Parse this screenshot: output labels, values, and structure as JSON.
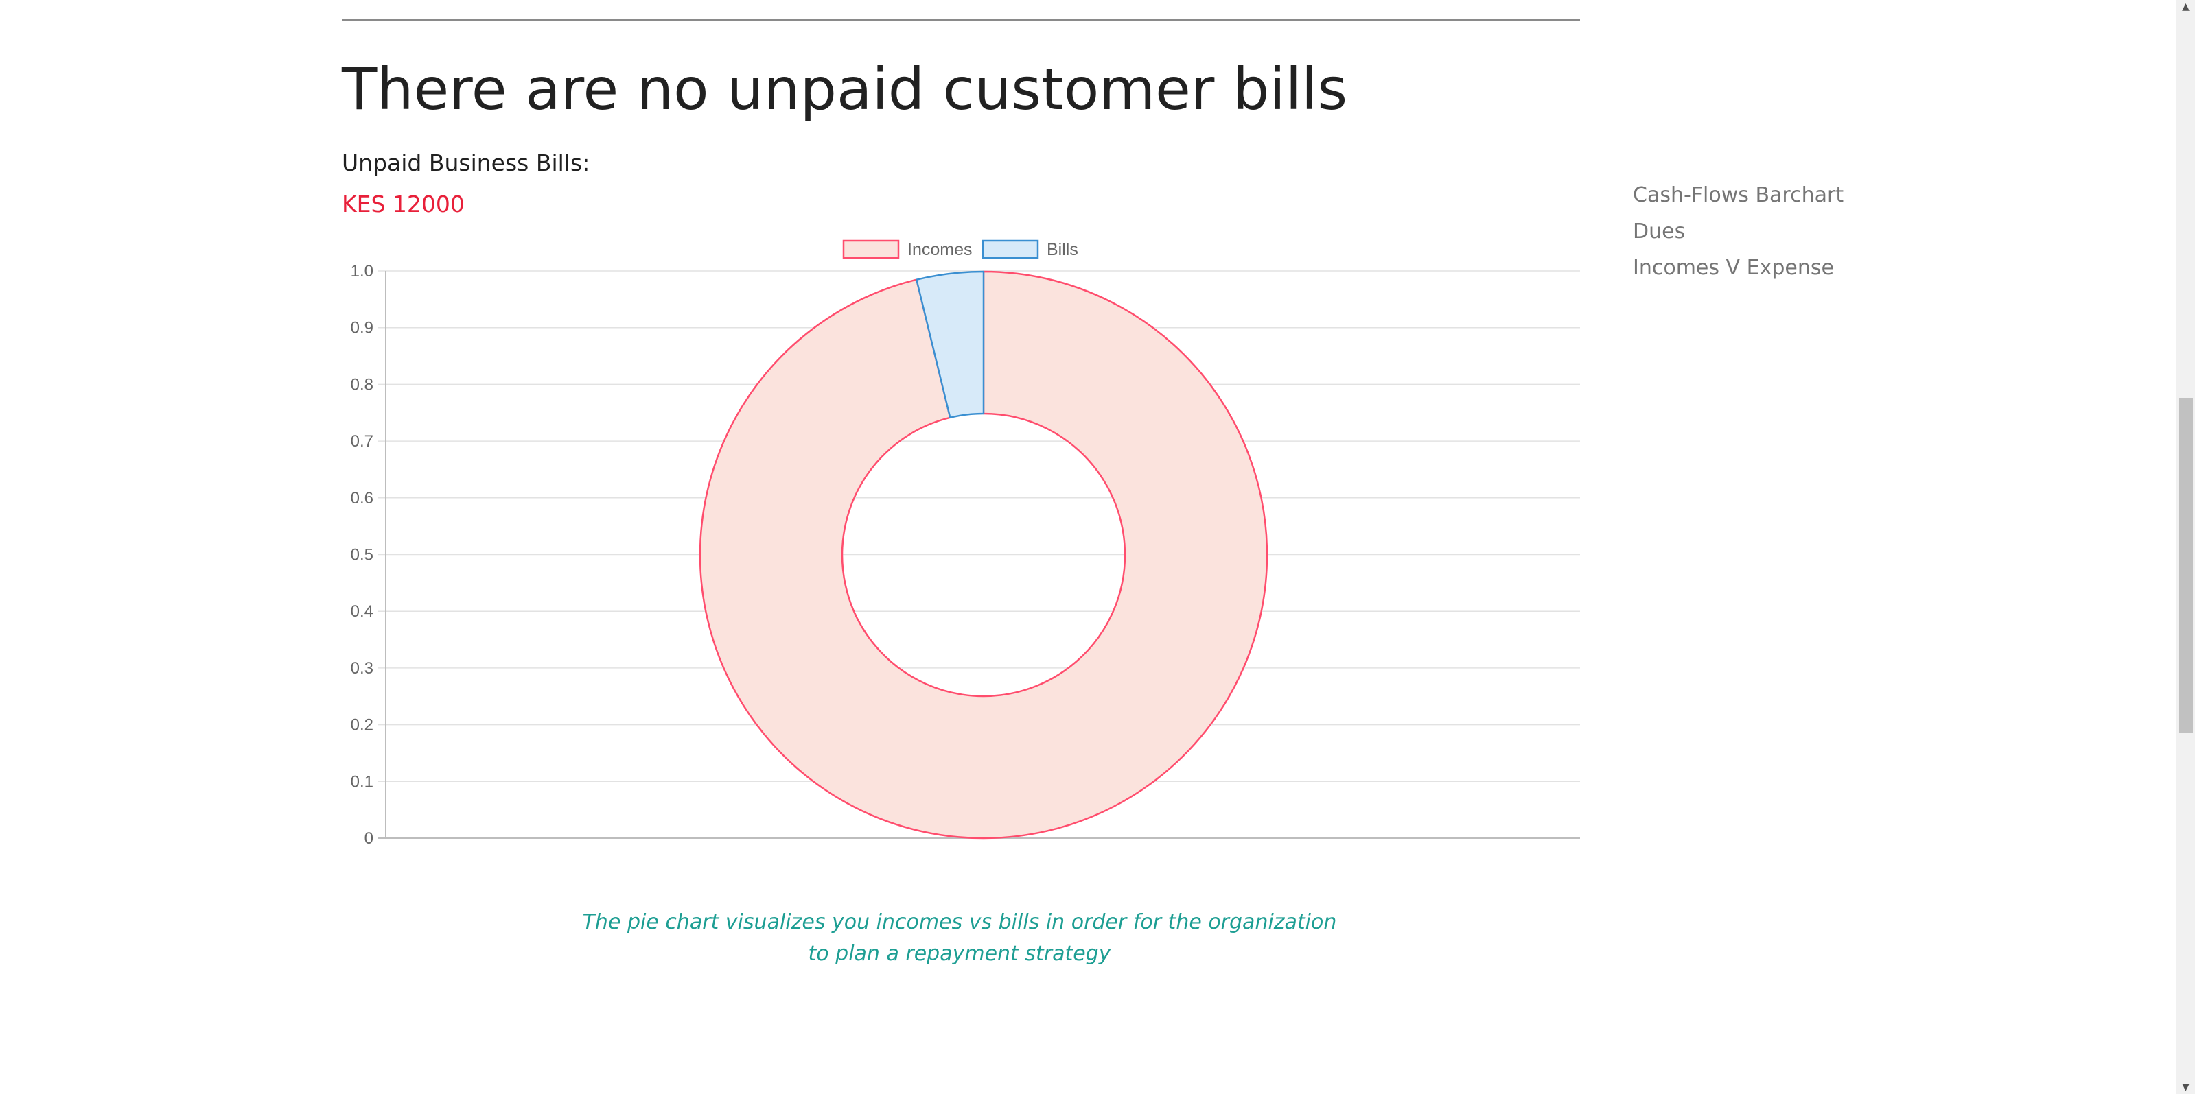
{
  "header": {
    "title": "There are no unpaid customer bills",
    "bills_label": "Unpaid Business Bills:",
    "bills_amount": "KES 12000"
  },
  "sidebar": {
    "items": [
      {
        "label": "Cash-Flows Barchart"
      },
      {
        "label": "Dues"
      },
      {
        "label": "Incomes V Expense"
      }
    ]
  },
  "caption": {
    "line1": "The pie chart visualizes you incomes vs bills in order for the organization",
    "line2": "to plan a repayment strategy"
  },
  "colors": {
    "incomes_fill": "#fbe3dd",
    "incomes_border": "#ff4d6d",
    "bills_fill": "#d7eaf9",
    "bills_border": "#3a8fd1",
    "accent_red": "#e8203a",
    "caption_teal": "#1d9e93"
  },
  "chart_data": {
    "type": "pie",
    "title": "",
    "legend_position": "top",
    "grid": true,
    "ylim": [
      0,
      1
    ],
    "y_ticks": [
      "1.0",
      "0.9",
      "0.8",
      "0.7",
      "0.6",
      "0.5",
      "0.4",
      "0.3",
      "0.2",
      "0.1",
      "0"
    ],
    "doughnut": true,
    "series": [
      {
        "name": "Incomes",
        "value": 0.962
      },
      {
        "name": "Bills",
        "value": 0.038
      }
    ]
  }
}
